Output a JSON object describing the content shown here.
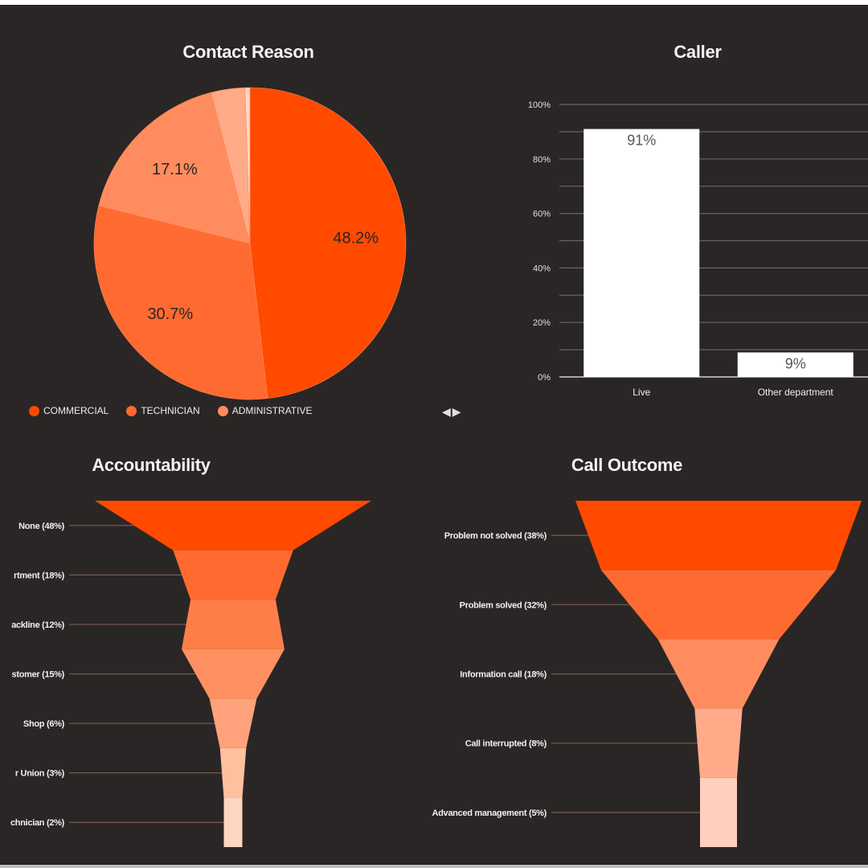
{
  "colors": {
    "background": "#2a2626",
    "commercial": "#ff4a00",
    "technician": "#ff6a30",
    "administrative": "#ff8c5e",
    "other_slice": "#ffab8a",
    "small_slice": "#ffd9c6",
    "bar": "#ffffff",
    "gridline": "#6c6464"
  },
  "legend_nav": {
    "prev_icon": "◀",
    "next_icon": "▶"
  },
  "chart_data": [
    {
      "id": "contact_reason",
      "type": "pie",
      "title": "Contact Reason",
      "slices": [
        {
          "label": "COMMERCIAL",
          "value": 48.2,
          "display": "48.2%",
          "color": "#ff4a00"
        },
        {
          "label": "TECHNICIAN",
          "value": 30.7,
          "display": "30.7%",
          "color": "#ff6a30"
        },
        {
          "label": "ADMINISTRATIVE",
          "value": 17.1,
          "display": "17.1%",
          "color": "#ff8c5e"
        },
        {
          "label": "",
          "value": 3.5,
          "display": "",
          "color": "#ffab8a"
        },
        {
          "label": "",
          "value": 0.5,
          "display": "",
          "color": "#ffd9c6"
        }
      ],
      "legend": [
        "COMMERCIAL",
        "TECHNICIAN",
        "ADMINISTRATIVE"
      ],
      "legend_position": "bottom"
    },
    {
      "id": "caller",
      "type": "bar",
      "title": "Caller",
      "categories": [
        "Live",
        "Other department"
      ],
      "values": [
        91,
        9
      ],
      "value_labels": [
        "91%",
        "9%"
      ],
      "ylim": [
        0,
        100
      ],
      "yticks": [
        0,
        20,
        40,
        60,
        80,
        100
      ],
      "ytick_labels": [
        "0%",
        "20%",
        "40%",
        "60%",
        "80%",
        "100%"
      ],
      "grid": true
    },
    {
      "id": "accountability",
      "type": "funnel",
      "title": "Accountability",
      "stages": [
        {
          "label": "None (48%)",
          "value": 48
        },
        {
          "label": "rtment (18%)",
          "value": 18
        },
        {
          "label": "ackline (12%)",
          "value": 12
        },
        {
          "label": "stomer (15%)",
          "value": 15
        },
        {
          "label": "Shop (6%)",
          "value": 6
        },
        {
          "label": "r Union (3%)",
          "value": 3
        },
        {
          "label": "chnician (2%)",
          "value": 2
        }
      ]
    },
    {
      "id": "call_outcome",
      "type": "funnel",
      "title": "Call Outcome",
      "stages": [
        {
          "label": "Problem not solved (38%)",
          "value": 38
        },
        {
          "label": "Problem solved (32%)",
          "value": 32
        },
        {
          "label": "Information call (18%)",
          "value": 18
        },
        {
          "label": "Call interrupted (8%)",
          "value": 8
        },
        {
          "label": "Advanced management (5%)",
          "value": 5
        }
      ]
    }
  ]
}
